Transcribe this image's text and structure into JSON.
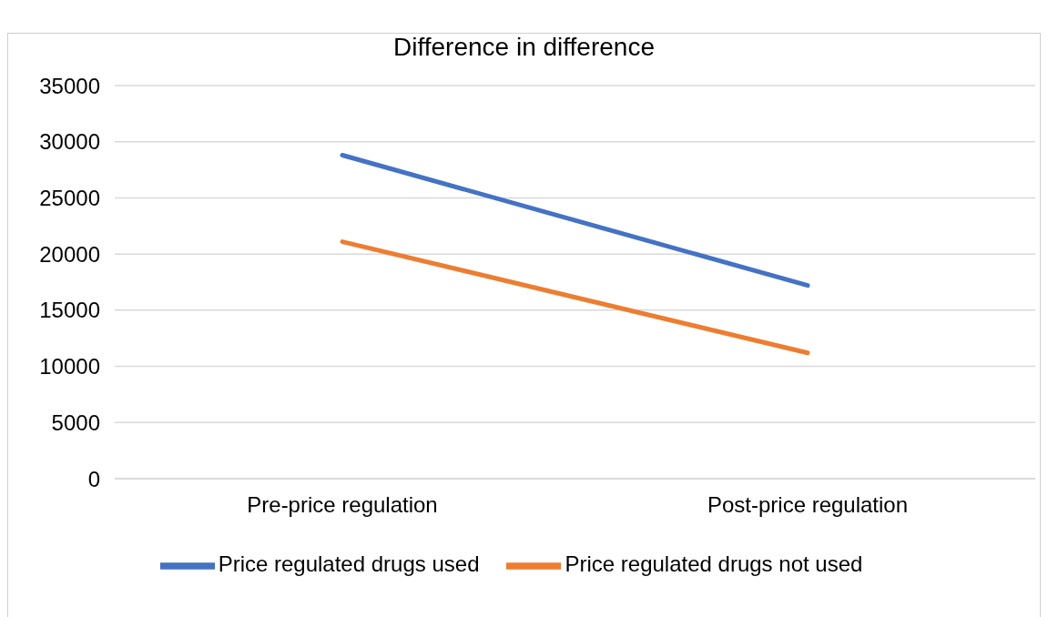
{
  "chart_data": {
    "type": "line",
    "title": "Difference in difference",
    "categories": [
      "Pre-price regulation",
      "Post-price regulation"
    ],
    "series": [
      {
        "name": "Price regulated drugs used",
        "color": "#4472c4",
        "values": [
          28800,
          17200
        ]
      },
      {
        "name": "Price regulated drugs not used",
        "color": "#ed7d31",
        "values": [
          21100,
          11200
        ]
      }
    ],
    "ylim": [
      0,
      35000
    ],
    "yticks": [
      0,
      5000,
      10000,
      15000,
      20000,
      25000,
      30000,
      35000
    ],
    "grid": "y",
    "legend": "bottom",
    "marker": "none",
    "line_style": "solid"
  }
}
